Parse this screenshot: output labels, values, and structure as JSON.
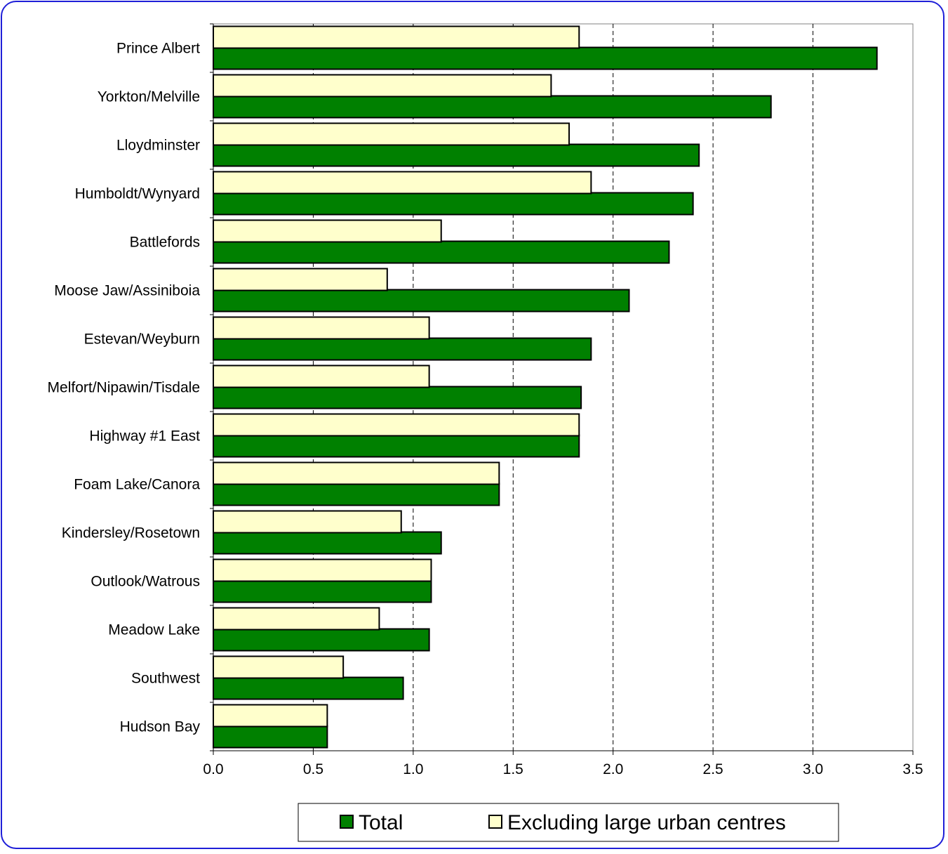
{
  "chart_data": {
    "type": "bar",
    "orientation": "horizontal",
    "categories": [
      "Prince Albert",
      "Yorkton/Melville",
      "Lloydminster",
      "Humboldt/Wynyard",
      "Battlefords",
      "Moose Jaw/Assiniboia",
      "Estevan/Weyburn",
      "Melfort/Nipawin/Tisdale",
      "Highway #1 East",
      "Foam Lake/Canora",
      "Kindersley/Rosetown",
      "Outlook/Watrous",
      "Meadow Lake",
      "Southwest",
      "Hudson Bay"
    ],
    "series": [
      {
        "name": "Excluding large urban centres",
        "color": "#ffffcc",
        "values": [
          1.83,
          1.69,
          1.78,
          1.89,
          1.14,
          0.87,
          1.08,
          1.08,
          1.83,
          1.43,
          0.94,
          1.09,
          0.83,
          0.65,
          0.57
        ]
      },
      {
        "name": "Total",
        "color": "#008000",
        "values": [
          3.32,
          2.79,
          2.43,
          2.4,
          2.28,
          2.08,
          1.89,
          1.84,
          1.83,
          1.43,
          1.14,
          1.09,
          1.08,
          0.95,
          0.57
        ]
      }
    ],
    "xlim": [
      0,
      3.5
    ],
    "xticks": [
      "0.0",
      "0.5",
      "1.0",
      "1.5",
      "2.0",
      "2.5",
      "3.0",
      "3.5"
    ],
    "grid": "vertical dashed",
    "legend": {
      "position": "bottom",
      "items": [
        "Total",
        "Excluding large urban centres"
      ]
    },
    "title": "",
    "xlabel": "",
    "ylabel": ""
  }
}
